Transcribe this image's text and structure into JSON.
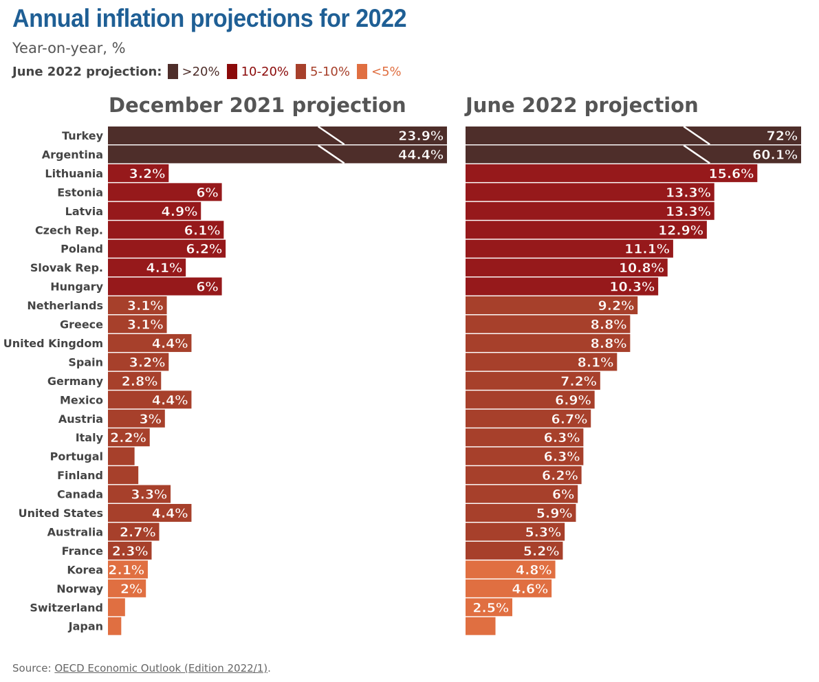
{
  "title": "Annual inflation projections for 2022",
  "subtitle": "Year-on-year, %",
  "legend": {
    "title": "June 2022 projection:",
    "items": [
      {
        "label": ">20%",
        "color": "#4e2e2a"
      },
      {
        "label": "10-20%",
        "color": "#8b0a0a"
      },
      {
        "label": "5-10%",
        "color": "#a7402b"
      },
      {
        "label": "<5%",
        "color": "#e06f41"
      }
    ]
  },
  "source": {
    "prefix": "Source: ",
    "link": "OECD Economic Outlook (Edition 2022/1)",
    "suffix": "."
  },
  "chart_data": [
    {
      "type": "bar",
      "orientation": "horizontal",
      "title": "December 2021 projection",
      "categories": [
        "Turkey",
        "Argentina",
        "Lithuania",
        "Estonia",
        "Latvia",
        "Czech Rep.",
        "Poland",
        "Slovak Rep.",
        "Hungary",
        "Netherlands",
        "Greece",
        "United Kingdom",
        "Spain",
        "Germany",
        "Mexico",
        "Austria",
        "Italy",
        "Portugal",
        "Finland",
        "Canada",
        "United States",
        "Australia",
        "France",
        "Korea",
        "Norway",
        "Switzerland",
        "Japan"
      ],
      "values": [
        23.9,
        44.4,
        3.2,
        6,
        4.9,
        6.1,
        6.2,
        4.1,
        6,
        3.1,
        3.1,
        4.4,
        3.2,
        2.8,
        4.4,
        3,
        2.2,
        1.4,
        1.6,
        3.3,
        4.4,
        2.7,
        2.3,
        2.1,
        2,
        0.9,
        0.7
      ],
      "labels": [
        "23.9%",
        "44.4%",
        "3.2%",
        "6%",
        "4.9%",
        "6.1%",
        "6.2%",
        "4.1%",
        "6%",
        "3.1%",
        "3.1%",
        "4.4%",
        "3.2%",
        "2.8%",
        "4.4%",
        "3%",
        "2.2%",
        "",
        "",
        "3.3%",
        "4.4%",
        "2.7%",
        "2.3%",
        "2.1%",
        "2%",
        "",
        ""
      ],
      "axis_break": true,
      "color_by": "June 2022 projection"
    },
    {
      "type": "bar",
      "orientation": "horizontal",
      "title": "June 2022 projection",
      "categories": [
        "Turkey",
        "Argentina",
        "Lithuania",
        "Estonia",
        "Latvia",
        "Czech Rep.",
        "Poland",
        "Slovak Rep.",
        "Hungary",
        "Netherlands",
        "Greece",
        "United Kingdom",
        "Spain",
        "Germany",
        "Mexico",
        "Austria",
        "Italy",
        "Portugal",
        "Finland",
        "Canada",
        "United States",
        "Australia",
        "France",
        "Korea",
        "Norway",
        "Switzerland",
        "Japan"
      ],
      "values": [
        72,
        60.1,
        15.6,
        13.3,
        13.3,
        12.9,
        11.1,
        10.8,
        10.3,
        9.2,
        8.8,
        8.8,
        8.1,
        7.2,
        6.9,
        6.7,
        6.3,
        6.3,
        6.2,
        6,
        5.9,
        5.3,
        5.2,
        4.8,
        4.6,
        2.5,
        1.6
      ],
      "labels": [
        "72%",
        "60.1%",
        "15.6%",
        "13.3%",
        "13.3%",
        "12.9%",
        "11.1%",
        "10.8%",
        "10.3%",
        "9.2%",
        "8.8%",
        "8.8%",
        "8.1%",
        "7.2%",
        "6.9%",
        "6.7%",
        "6.3%",
        "6.3%",
        "6.2%",
        "6%",
        "5.9%",
        "5.3%",
        "5.2%",
        "4.8%",
        "4.6%",
        "2.5%",
        ""
      ],
      "axis_break": true
    }
  ]
}
